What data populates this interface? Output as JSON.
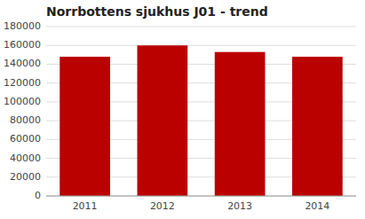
{
  "chart_data": {
    "type": "bar",
    "title": "Norrbottens sjukhus J01 - trend",
    "categories": [
      "2011",
      "2012",
      "2013",
      "2014"
    ],
    "values": [
      148000,
      160000,
      153000,
      148000
    ],
    "color": "#bb0000",
    "ylim": [
      0,
      180000
    ],
    "yticks": [
      0,
      20000,
      40000,
      60000,
      80000,
      100000,
      120000,
      140000,
      160000,
      180000
    ],
    "grid": true
  }
}
